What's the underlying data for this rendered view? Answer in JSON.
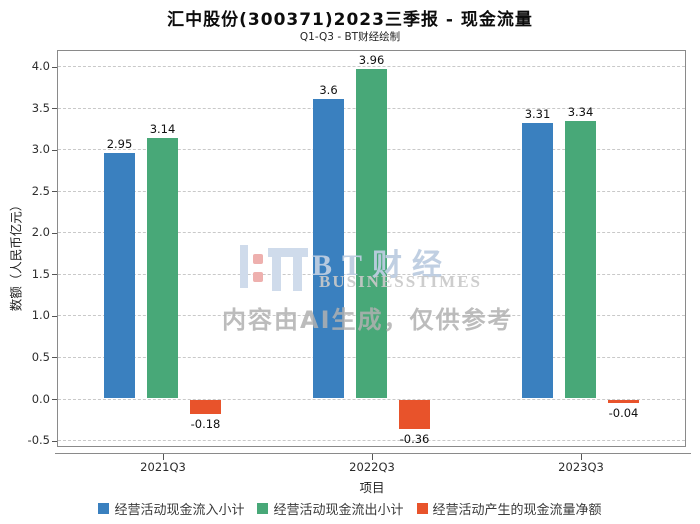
{
  "chart_data": {
    "type": "bar",
    "title": "汇中股份(300371)2023三季报 - 现金流量",
    "subtitle": "Q1-Q3 - BT财经绘制",
    "xlabel": "项目",
    "ylabel": "数额（人民币亿元）",
    "categories": [
      "2021Q3",
      "2022Q3",
      "2023Q3"
    ],
    "series": [
      {
        "name": "经营活动现金流入小计",
        "color": "#3a80bf",
        "values": [
          2.95,
          3.6,
          3.31
        ]
      },
      {
        "name": "经营活动现金流出小计",
        "color": "#48a878",
        "values": [
          3.14,
          3.96,
          3.34
        ]
      },
      {
        "name": "经营活动产生的现金流量净额",
        "color": "#e8532b",
        "values": [
          -0.18,
          -0.36,
          -0.04
        ]
      }
    ],
    "yticks": [
      4.0,
      3.5,
      3.0,
      2.5,
      2.0,
      1.5,
      1.0,
      0.5,
      0.0,
      -0.5
    ],
    "ylim": [
      -0.59,
      4.19
    ],
    "grid": true,
    "gridline_color": "#c9c9c9",
    "legend_position": "bottom"
  },
  "watermark": {
    "brand": "BT财经",
    "brand_sub": "BUSINESSTIMES",
    "disclaimer": "内容由AI生成，仅供参考",
    "logo_blue": "#cfdbeb",
    "logo_red": "#eeb0ae"
  }
}
